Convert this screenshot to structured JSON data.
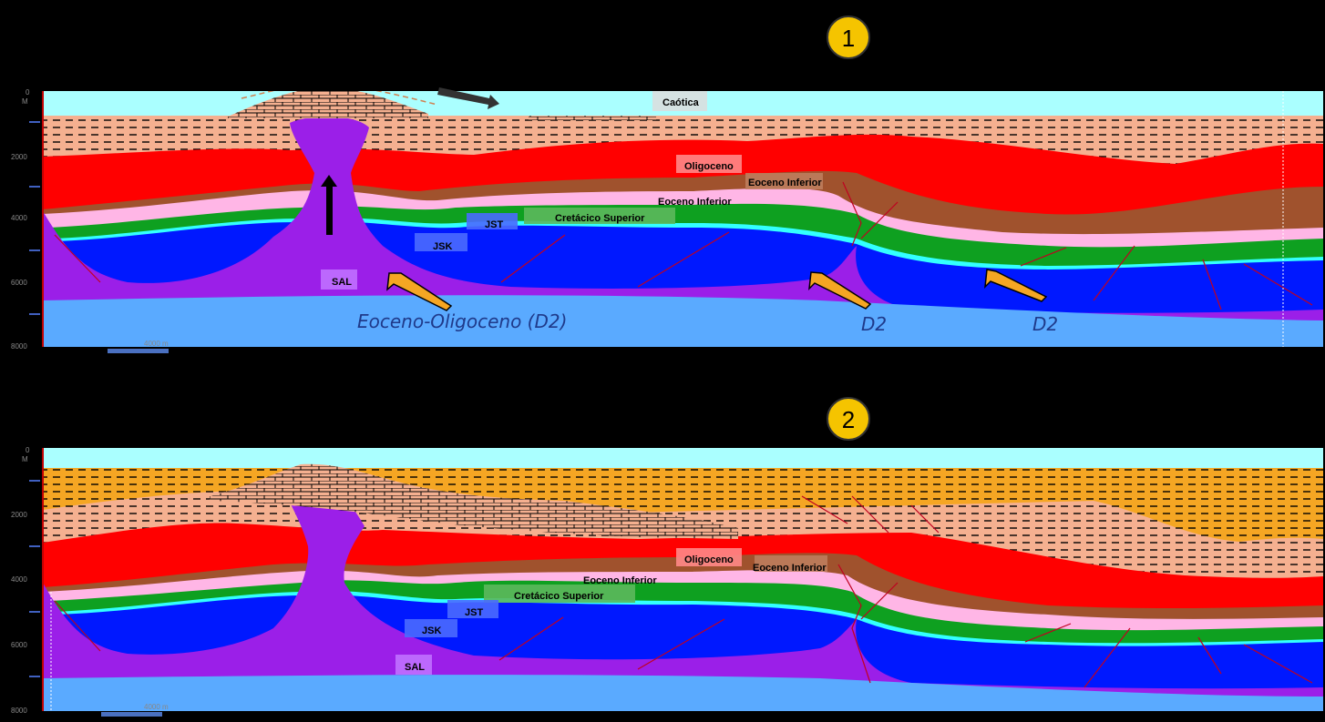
{
  "colors": {
    "water": "#aaffff",
    "shale": "#f5b090",
    "shale_orange": "#f5a623",
    "oligoceno": "#ff0000",
    "eoceno_inferior": "#a0522d",
    "pink": "#ffb6e6",
    "green": "#0ea020",
    "cyan": "#33ffff",
    "blue": "#0018ff",
    "salt": "#9b1fe8",
    "basement": "#5aaaff",
    "badge": "#f5c400"
  },
  "sections": [
    {
      "badge": "1",
      "depth_top": "0",
      "depth_unit": "M",
      "depth_ticks": [
        "2000",
        "4000",
        "6000",
        "8000"
      ],
      "scale_bar": "4000 m",
      "labels": {
        "caotica": "Caótica",
        "oligoceno": "Oligoceno",
        "eoceno_inferior_a": "Eoceno Inferior",
        "eoceno_inferior_b": "Eoceno Inferior",
        "cretacico": "Cretácico Superior",
        "jst": "JST",
        "jsk": "JSK",
        "sal": "SAL"
      },
      "annotations": {
        "main": "Eoceno-Oligoceno (D2)",
        "d2_a": "D2",
        "d2_b": "D2"
      }
    },
    {
      "badge": "2",
      "depth_top": "0",
      "depth_unit": "M",
      "depth_ticks": [
        "2000",
        "4000",
        "6000",
        "8000"
      ],
      "scale_bar": "4000 m",
      "labels": {
        "oligoceno": "Oligoceno",
        "eoceno_inferior_a": "Eoceno Inferior",
        "eoceno_inferior_b": "Eoceno Inferior",
        "cretacico": "Cretácico Superior",
        "jst": "JST",
        "jsk": "JSK",
        "sal": "SAL"
      }
    }
  ]
}
